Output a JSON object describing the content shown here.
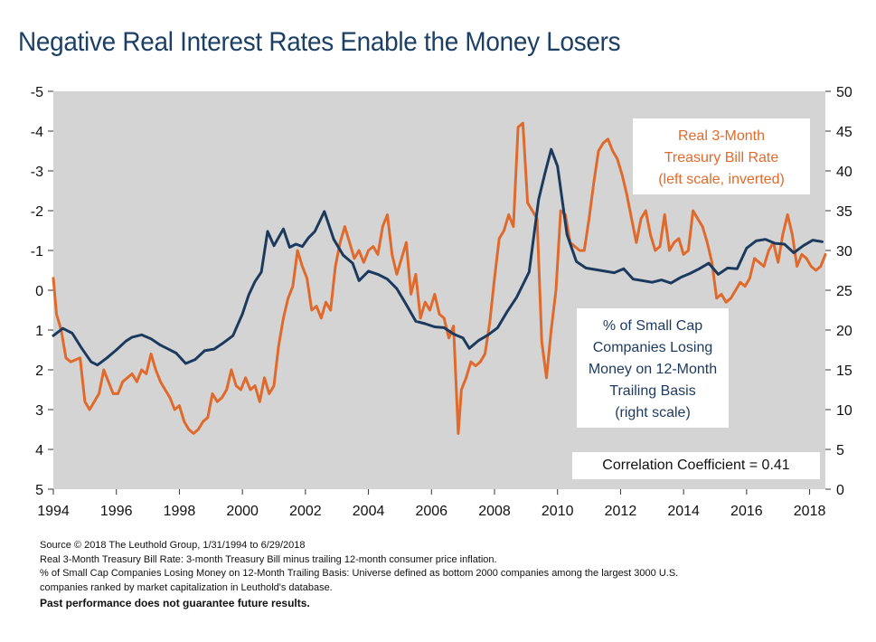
{
  "title": "Negative Real Interest Rates Enable the Money Losers",
  "chart_data": {
    "type": "line",
    "title": "Negative Real Interest Rates Enable the Money Losers",
    "x_ticks": [
      "1994",
      "1996",
      "1998",
      "2000",
      "2002",
      "2004",
      "2006",
      "2008",
      "2010",
      "2012",
      "2014",
      "2016",
      "2018"
    ],
    "xlim": [
      1994.0,
      2018.5
    ],
    "left_axis": {
      "ticks": [
        "-5",
        "-4",
        "-3",
        "-2",
        "-1",
        "0",
        "1",
        "2",
        "3",
        "4",
        "5"
      ],
      "ylim": [
        5,
        -5
      ],
      "inverted": true
    },
    "right_axis": {
      "ticks": [
        "50",
        "45",
        "40",
        "35",
        "30",
        "25",
        "20",
        "15",
        "10",
        "5",
        "0"
      ],
      "ylim": [
        0,
        50
      ]
    },
    "grid": false,
    "series": [
      {
        "name": "Real 3-Month Treasury Bill Rate (left scale, inverted)",
        "axis": "left",
        "color": "#e06a2c",
        "x": [
          1994.0,
          1994.1,
          1994.25,
          1994.4,
          1994.55,
          1994.7,
          1994.85,
          1995.0,
          1995.15,
          1995.3,
          1995.45,
          1995.6,
          1995.75,
          1995.9,
          1996.05,
          1996.2,
          1996.35,
          1996.5,
          1996.65,
          1996.8,
          1996.95,
          1997.1,
          1997.25,
          1997.4,
          1997.55,
          1997.7,
          1997.85,
          1998.0,
          1998.15,
          1998.3,
          1998.45,
          1998.6,
          1998.75,
          1998.9,
          1999.05,
          1999.2,
          1999.35,
          1999.5,
          1999.65,
          1999.8,
          1999.95,
          2000.1,
          2000.25,
          2000.4,
          2000.55,
          2000.7,
          2000.85,
          2001.0,
          2001.15,
          2001.3,
          2001.45,
          2001.6,
          2001.75,
          2001.9,
          2002.05,
          2002.2,
          2002.35,
          2002.5,
          2002.65,
          2002.8,
          2002.95,
          2003.1,
          2003.25,
          2003.4,
          2003.55,
          2003.7,
          2003.85,
          2004.0,
          2004.15,
          2004.3,
          2004.45,
          2004.6,
          2004.75,
          2004.9,
          2005.05,
          2005.2,
          2005.35,
          2005.5,
          2005.65,
          2005.8,
          2005.95,
          2006.1,
          2006.25,
          2006.4,
          2006.55,
          2006.7,
          2006.85,
          2006.95,
          2007.1,
          2007.25,
          2007.4,
          2007.55,
          2007.7,
          2007.85,
          2008.0,
          2008.15,
          2008.3,
          2008.45,
          2008.6,
          2008.75,
          2008.9,
          2009.05,
          2009.2,
          2009.35,
          2009.5,
          2009.65,
          2009.8,
          2009.95,
          2010.1,
          2010.25,
          2010.4,
          2010.55,
          2010.7,
          2010.85,
          2011.0,
          2011.15,
          2011.3,
          2011.45,
          2011.6,
          2011.75,
          2011.9,
          2012.05,
          2012.2,
          2012.35,
          2012.5,
          2012.65,
          2012.8,
          2012.95,
          2013.1,
          2013.25,
          2013.4,
          2013.55,
          2013.7,
          2013.85,
          2014.0,
          2014.15,
          2014.3,
          2014.45,
          2014.6,
          2014.75,
          2014.9,
          2015.05,
          2015.2,
          2015.35,
          2015.5,
          2015.65,
          2015.8,
          2015.95,
          2016.1,
          2016.25,
          2016.4,
          2016.55,
          2016.7,
          2016.85,
          2017.0,
          2017.15,
          2017.3,
          2017.45,
          2017.6,
          2017.75,
          2017.9,
          2018.05,
          2018.2,
          2018.35,
          2018.5
        ],
        "values": [
          -0.3,
          0.6,
          1.0,
          1.7,
          1.8,
          1.75,
          1.7,
          2.8,
          3.0,
          2.8,
          2.6,
          2.0,
          2.3,
          2.6,
          2.6,
          2.3,
          2.2,
          2.1,
          2.3,
          2.0,
          2.1,
          1.6,
          2.0,
          2.3,
          2.5,
          2.7,
          3.0,
          2.9,
          3.3,
          3.5,
          3.6,
          3.5,
          3.3,
          3.2,
          2.6,
          2.8,
          2.7,
          2.5,
          2.0,
          2.4,
          2.5,
          2.2,
          2.5,
          2.4,
          2.8,
          2.2,
          2.6,
          2.4,
          1.4,
          0.7,
          0.2,
          -0.1,
          -1.0,
          -0.6,
          -0.3,
          0.5,
          0.4,
          0.7,
          0.3,
          0.5,
          -0.6,
          -1.2,
          -1.6,
          -1.2,
          -0.8,
          -1.0,
          -0.7,
          -1.0,
          -1.1,
          -0.9,
          -1.6,
          -1.9,
          -0.9,
          -0.4,
          -0.8,
          -1.2,
          0.1,
          -0.4,
          0.7,
          0.3,
          0.5,
          0.1,
          0.6,
          0.7,
          1.2,
          0.9,
          3.6,
          2.5,
          2.2,
          1.8,
          1.9,
          1.8,
          1.6,
          0.8,
          -0.3,
          -1.3,
          -1.5,
          -1.9,
          -1.6,
          -4.1,
          -4.2,
          -2.2,
          -2.0,
          -1.8,
          1.3,
          2.2,
          1.0,
          0.0,
          -2.0,
          -1.9,
          -1.2,
          -1.1,
          -1.0,
          -1.0,
          -1.8,
          -2.7,
          -3.5,
          -3.7,
          -3.8,
          -3.5,
          -3.3,
          -2.9,
          -2.4,
          -1.8,
          -1.2,
          -1.8,
          -2.0,
          -1.4,
          -1.0,
          -1.1,
          -1.9,
          -1.0,
          -1.2,
          -1.3,
          -0.9,
          -1.0,
          -2.0,
          -1.8,
          -1.6,
          -1.2,
          -0.7,
          0.2,
          0.1,
          0.3,
          0.2,
          0.0,
          -0.2,
          -0.1,
          -0.3,
          -0.8,
          -0.7,
          -0.6,
          -1.0,
          -1.2,
          -0.7,
          -1.4,
          -1.9,
          -1.4,
          -0.6,
          -0.9,
          -0.8,
          -0.6,
          -0.5,
          -0.6,
          -0.9
        ]
      },
      {
        "name": "% of Small Cap Companies Losing Money on 12-Month Trailing Basis (right scale)",
        "axis": "right",
        "color": "#1c3a5e",
        "x": [
          1994.0,
          1994.3,
          1994.6,
          1994.9,
          1995.2,
          1995.4,
          1995.7,
          1996.0,
          1996.3,
          1996.5,
          1996.8,
          1997.1,
          1997.4,
          1997.6,
          1997.9,
          1998.2,
          1998.5,
          1998.8,
          1999.1,
          1999.4,
          1999.7,
          2000.0,
          2000.2,
          2000.4,
          2000.6,
          2000.8,
          2001.0,
          2001.3,
          2001.5,
          2001.7,
          2001.9,
          2002.1,
          2002.3,
          2002.6,
          2002.9,
          2003.2,
          2003.5,
          2003.7,
          2004.0,
          2004.3,
          2004.6,
          2004.9,
          2005.2,
          2005.5,
          2005.8,
          2006.1,
          2006.4,
          2006.7,
          2007.0,
          2007.2,
          2007.5,
          2007.8,
          2008.1,
          2008.4,
          2008.7,
          2008.9,
          2009.1,
          2009.4,
          2009.6,
          2009.8,
          2010.0,
          2010.3,
          2010.6,
          2010.9,
          2011.2,
          2011.5,
          2011.8,
          2012.1,
          2012.4,
          2012.7,
          2013.0,
          2013.3,
          2013.6,
          2013.9,
          2014.2,
          2014.5,
          2014.8,
          2015.1,
          2015.4,
          2015.7,
          2016.0,
          2016.3,
          2016.6,
          2016.9,
          2017.2,
          2017.5,
          2017.8,
          2018.1,
          2018.4
        ],
        "values": [
          19.3,
          20.2,
          19.6,
          17.7,
          16.0,
          15.6,
          16.5,
          17.5,
          18.6,
          19.1,
          19.4,
          18.9,
          18.1,
          17.7,
          17.1,
          15.8,
          16.3,
          17.4,
          17.6,
          18.4,
          19.3,
          22.0,
          24.4,
          26.1,
          27.3,
          32.4,
          30.6,
          32.7,
          30.4,
          30.8,
          30.5,
          31.6,
          32.4,
          34.9,
          31.4,
          29.4,
          28.4,
          26.2,
          27.4,
          27.0,
          26.4,
          25.2,
          23.2,
          21.1,
          20.8,
          20.4,
          20.3,
          19.5,
          19.0,
          17.7,
          18.7,
          19.4,
          20.3,
          22.3,
          24.1,
          25.7,
          27.3,
          36.4,
          39.7,
          42.7,
          40.6,
          32.0,
          28.6,
          27.8,
          27.6,
          27.4,
          27.2,
          27.7,
          26.4,
          26.2,
          26.0,
          26.3,
          25.9,
          26.6,
          27.1,
          27.7,
          28.4,
          27.0,
          27.8,
          27.7,
          30.3,
          31.2,
          31.4,
          30.9,
          30.8,
          29.7,
          30.6,
          31.3,
          31.1
        ]
      }
    ],
    "annotations": [
      {
        "lines": [
          "Real 3-Month",
          "Treasury Bill Rate",
          "(left scale, inverted)"
        ],
        "color": "#e06a2c"
      },
      {
        "lines": [
          "% of Small Cap",
          "Companies Losing",
          "Money on 12-Month",
          "Trailing Basis",
          "(right scale)"
        ],
        "color": "#1c3a5e"
      },
      {
        "lines": [
          "Correlation Coefficient = 0.41"
        ],
        "color": "#111111"
      }
    ]
  },
  "notes": {
    "source": "Source © 2018 The Leuthold Group, 1/31/1994 to 6/29/2018",
    "line1": "Real 3-Month Treasury Bill Rate: 3-month Treasury Bill minus trailing 12-month consumer price inflation.",
    "line2": "% of Small Cap Companies Losing Money on 12-Month Trailing Basis: Universe defined as bottom 2000 companies among the largest 3000 U.S.",
    "line3": "companies ranked by market capitalization in Leuthold's database.",
    "disclaimer": "Past performance does not guarantee future results."
  }
}
